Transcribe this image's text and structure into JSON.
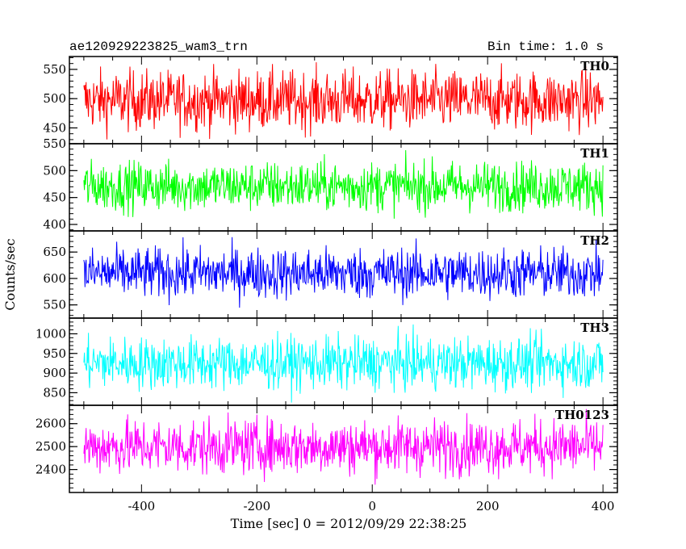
{
  "chart_data": {
    "type": "line",
    "title": "ae120929223825_wam3_trn",
    "subtitle": "Bin time: 1.0 s",
    "xlabel": "Time [sec] 0 = 2012/09/29 22:38:25",
    "ylabel": "Counts/sec",
    "xlim": [
      -525,
      425
    ],
    "x_range_data": [
      -500,
      400
    ],
    "x_ticks": [
      -400,
      -200,
      0,
      200,
      400
    ],
    "panels": [
      {
        "name": "TH0",
        "color": "#ff0000",
        "ylim": [
          423,
          572
        ],
        "yticks": [
          450,
          500,
          550
        ],
        "mean": 497,
        "amplitude": 42
      },
      {
        "name": "TH1",
        "color": "#00ff00",
        "ylim": [
          388,
          550
        ],
        "yticks": [
          400,
          450,
          500,
          550
        ],
        "mean": 471,
        "amplitude": 38
      },
      {
        "name": "TH2",
        "color": "#0000ff",
        "ylim": [
          525,
          690
        ],
        "yticks": [
          550,
          600,
          650
        ],
        "mean": 610,
        "amplitude": 40
      },
      {
        "name": "TH3",
        "color": "#00ffff",
        "ylim": [
          818,
          1040
        ],
        "yticks": [
          850,
          900,
          950,
          1000
        ],
        "mean": 925,
        "amplitude": 55
      },
      {
        "name": "TH0123",
        "color": "#ff00ff",
        "ylim": [
          2300,
          2680
        ],
        "yticks": [
          2400,
          2500,
          2600
        ],
        "mean": 2500,
        "amplitude": 100
      }
    ]
  }
}
